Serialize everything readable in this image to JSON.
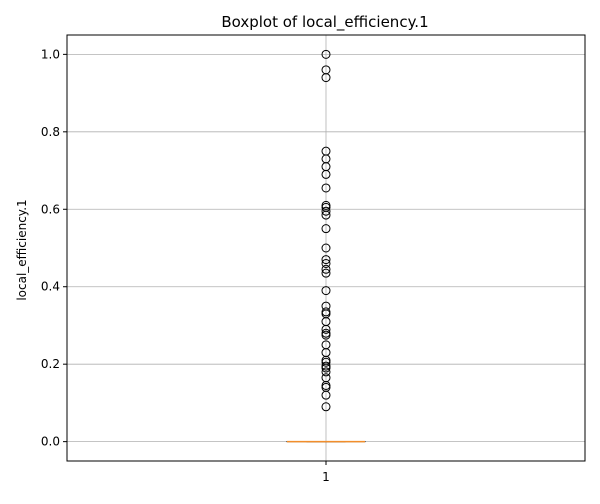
{
  "chart_data": {
    "type": "box",
    "title": "Boxplot of local_efficiency.1",
    "xlabel": "",
    "ylabel": "local_efficiency.1",
    "categories": [
      "1"
    ],
    "ylim": [
      -0.05,
      1.05
    ],
    "yticks": [
      0.0,
      0.2,
      0.4,
      0.6,
      0.8,
      1.0
    ],
    "ytick_labels": [
      "0.0",
      "0.2",
      "0.4",
      "0.6",
      "0.8",
      "1.0"
    ],
    "grid": true,
    "box": {
      "q1": 0.0,
      "median": 0.0,
      "q3": 0.0,
      "whisker_low": 0.0,
      "whisker_high": 0.0
    },
    "outliers": [
      1.0,
      0.96,
      0.94,
      0.75,
      0.73,
      0.71,
      0.69,
      0.655,
      0.61,
      0.605,
      0.595,
      0.585,
      0.55,
      0.5,
      0.47,
      0.46,
      0.445,
      0.435,
      0.39,
      0.35,
      0.335,
      0.33,
      0.31,
      0.29,
      0.28,
      0.275,
      0.25,
      0.23,
      0.21,
      0.205,
      0.195,
      0.19,
      0.18,
      0.165,
      0.145,
      0.14,
      0.12,
      0.09
    ],
    "colors": {
      "median": "#f28e2b",
      "box": "#000000",
      "outlier": "#000000",
      "grid": "#b0b0b0"
    }
  }
}
